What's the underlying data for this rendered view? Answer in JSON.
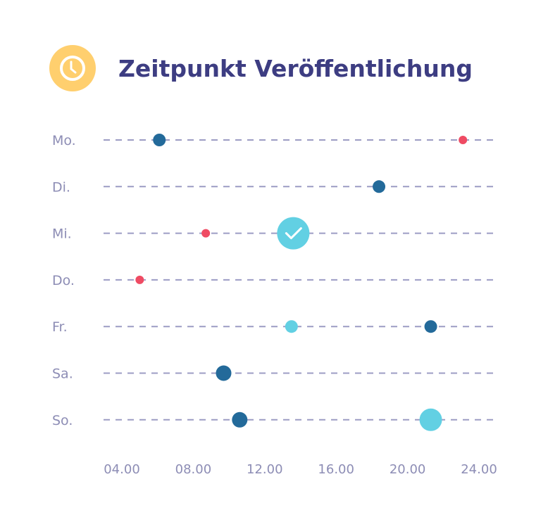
{
  "chart_data": {
    "type": "scatter",
    "title": "Zeitpunkt Veröffentlichung",
    "icon": "clock-icon",
    "categories": [
      "Mo.",
      "Di.",
      "Mi.",
      "Do.",
      "Fr.",
      "Sa.",
      "So."
    ],
    "x_ticks": [
      "04.00",
      "08.00",
      "12.00",
      "16.00",
      "20.00",
      "24.00"
    ],
    "xlim": [
      3,
      25
    ],
    "grid": "dashed horizontal lines per day",
    "colors": {
      "title": "#3d3d82",
      "icon_bg": "#ffcf6e",
      "dark": "#236a9a",
      "red": "#ef4b63",
      "cyan": "#62d0e3",
      "grid": "#9c9cc4",
      "label": "#8d8db5"
    },
    "points": [
      {
        "day": "Mo.",
        "time": 6.1,
        "kind": "dark",
        "size": "medium"
      },
      {
        "day": "Mo.",
        "time": 23.1,
        "kind": "red",
        "size": "small"
      },
      {
        "day": "Di.",
        "time": 18.4,
        "kind": "dark",
        "size": "medium"
      },
      {
        "day": "Mi.",
        "time": 8.7,
        "kind": "red",
        "size": "small"
      },
      {
        "day": "Mi.",
        "time": 13.6,
        "kind": "cyan",
        "size": "xlarge",
        "check": true
      },
      {
        "day": "Do.",
        "time": 5.0,
        "kind": "red",
        "size": "small"
      },
      {
        "day": "Fr.",
        "time": 13.5,
        "kind": "cyan",
        "size": "medium"
      },
      {
        "day": "Fr.",
        "time": 21.3,
        "kind": "dark",
        "size": "medium"
      },
      {
        "day": "Sa.",
        "time": 9.7,
        "kind": "dark",
        "size": "large"
      },
      {
        "day": "So.",
        "time": 10.6,
        "kind": "dark",
        "size": "large"
      },
      {
        "day": "So.",
        "time": 21.3,
        "kind": "cyan",
        "size": "larger"
      }
    ]
  }
}
